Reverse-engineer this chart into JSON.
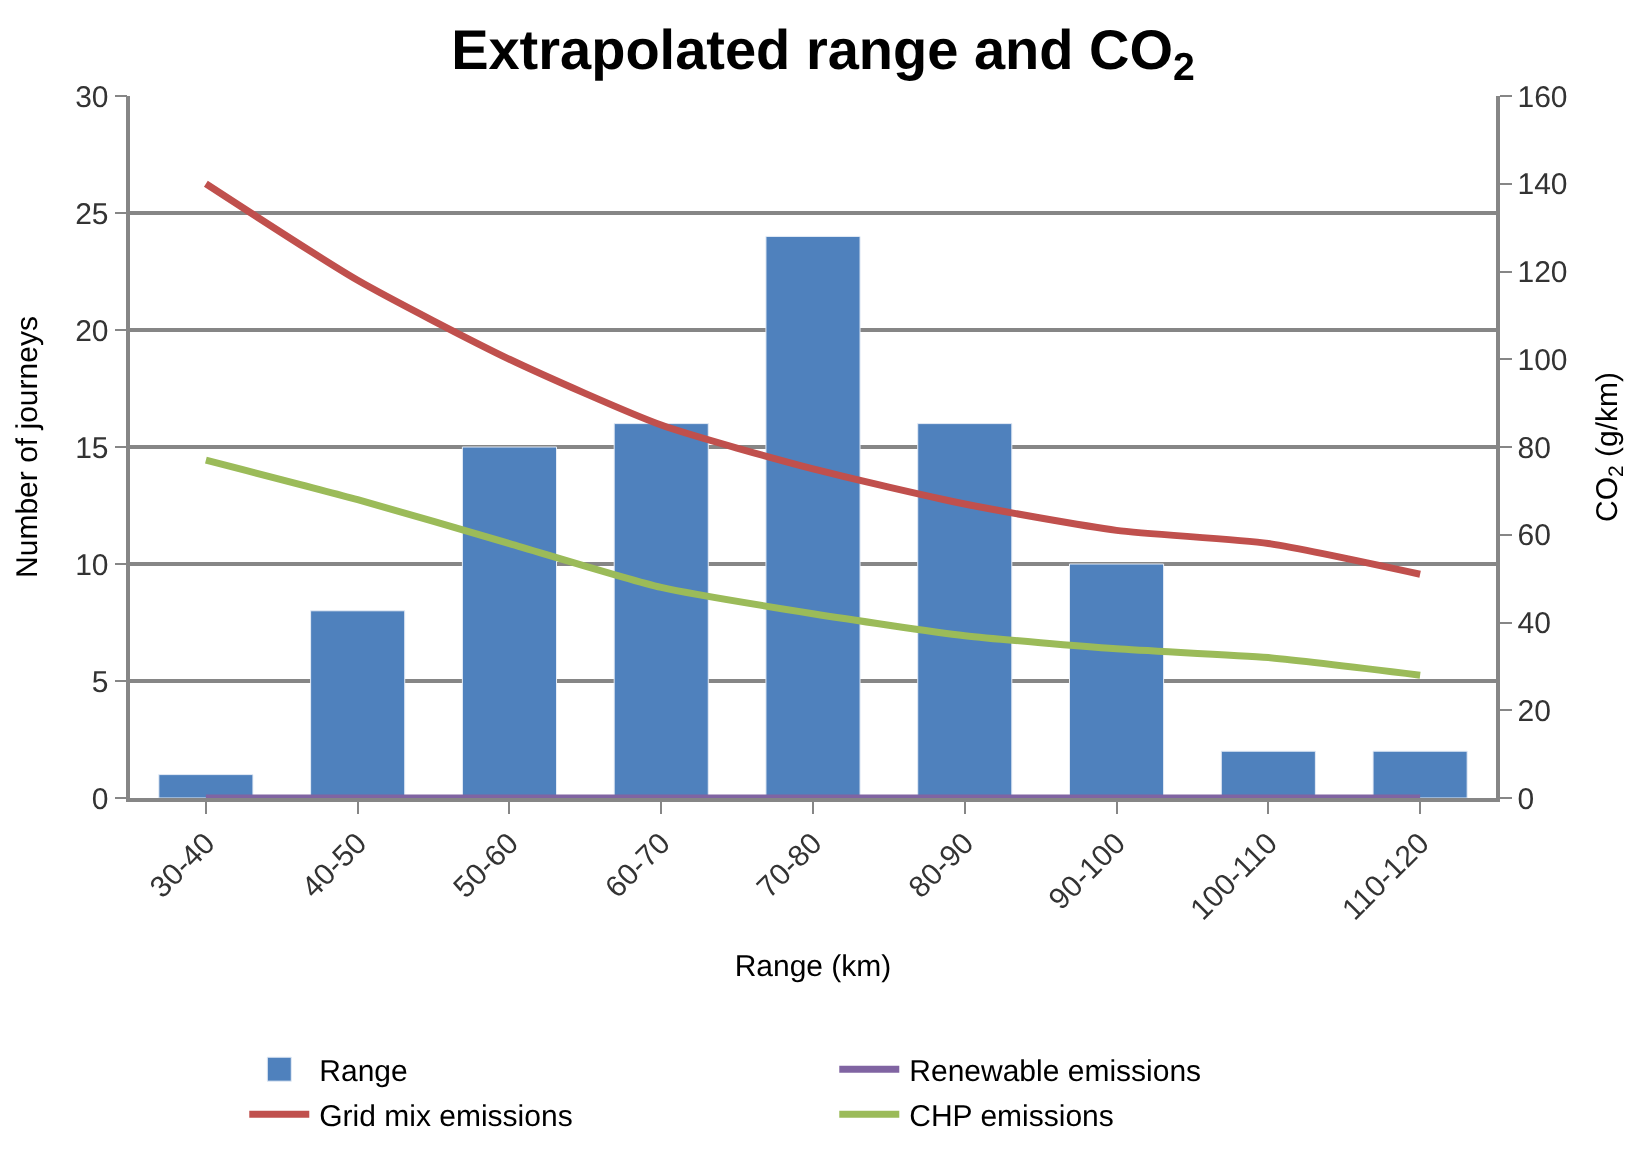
{
  "chart_data": {
    "type": "bar",
    "title": "Extrapolated range and CO$_{2}$",
    "xlabel": "Range (km)",
    "ylabel": "Number of journeys",
    "y2label": "CO$_{2}$ (g/km)",
    "categories": [
      "30-40",
      "40-50",
      "50-60",
      "60-70",
      "70-80",
      "80-90",
      "90-100",
      "100-110",
      "110-120"
    ],
    "series": [
      {
        "name": "Range",
        "color": "#4f81bd",
        "values": [
          1,
          8,
          15,
          16,
          24,
          16,
          10,
          2,
          2
        ]
      },
      {
        "name": "Renewable emissions",
        "type": "line",
        "axis": "y2",
        "color": "#8064a2",
        "values": [
          0,
          0,
          0,
          0,
          0,
          0,
          0,
          0,
          0
        ]
      },
      {
        "name": "Grid mix emissions",
        "type": "line",
        "axis": "y2",
        "color": "#c0504d",
        "values": [
          140,
          118,
          100,
          85,
          75,
          67,
          61,
          58,
          51
        ]
      },
      {
        "name": "CHP emissions",
        "type": "line",
        "axis": "y2",
        "color": "#9bbb59",
        "values": [
          77,
          68,
          58,
          48,
          42,
          37,
          34,
          32,
          28
        ]
      }
    ],
    "ylim": [
      0,
      30
    ],
    "yticks": [
      0,
      5,
      10,
      15,
      20,
      25,
      30
    ],
    "y2lim": [
      0,
      160
    ],
    "y2ticks": [
      0,
      20,
      40,
      60,
      80,
      100,
      120,
      140,
      160
    ],
    "grid": "y",
    "legend": "bottom",
    "marker": "none",
    "line_style": "solid"
  }
}
